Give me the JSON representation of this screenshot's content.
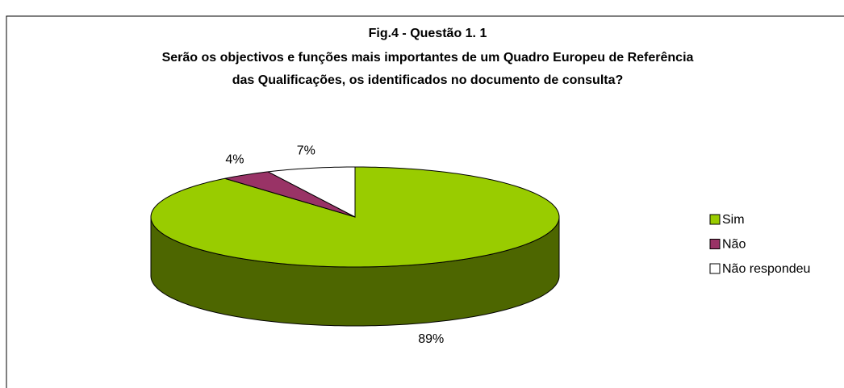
{
  "chart_data": {
    "type": "pie3d",
    "title": "Fig.4 - Questão 1. 1",
    "subtitle": [
      "Serão os objectivos e funções mais importantes de um Quadro Europeu de Referência",
      "das Qualificações, os identificados no documento de consulta?"
    ],
    "categories": [
      "Sim",
      "Não",
      "Não respondeu"
    ],
    "values": [
      89,
      4,
      7
    ],
    "value_labels": [
      "89%",
      "4%",
      "7%"
    ],
    "colors": [
      "#99cc00",
      "#993366",
      "#ffffff"
    ],
    "legend": "right"
  }
}
